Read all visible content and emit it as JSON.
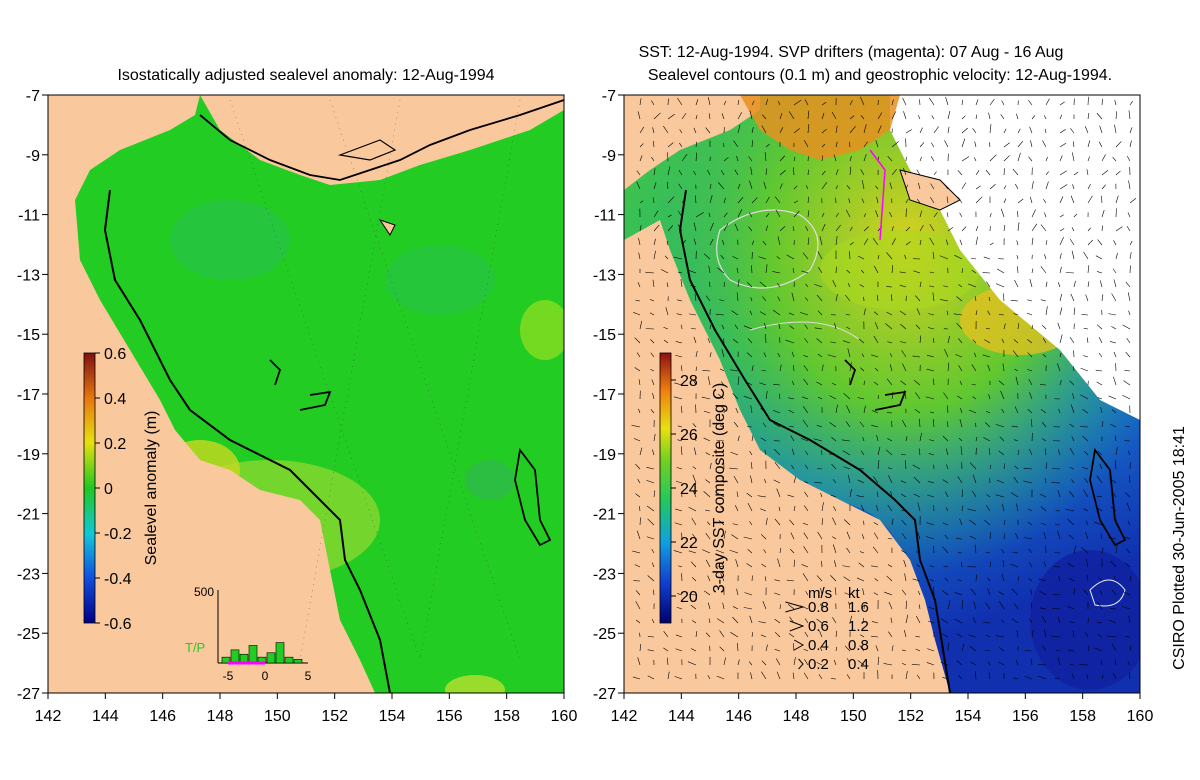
{
  "chart_data": [
    {
      "type": "heatmap",
      "title": "Isostatically adjusted sealevel anomaly: 12-Aug-1994",
      "x_ticks": [
        142,
        144,
        146,
        148,
        150,
        152,
        154,
        156,
        158,
        160
      ],
      "y_ticks": [
        -7,
        -9,
        -11,
        -13,
        -15,
        -17,
        -19,
        -21,
        -23,
        -25,
        -27
      ],
      "xlim": [
        142,
        160
      ],
      "ylim": [
        -27,
        -7
      ],
      "colorbar": {
        "label": "Sealevel anomaly (m)",
        "ticks": [
          "0.6",
          "0.4",
          "0.2",
          "0",
          "-0.2",
          "-0.4",
          "-0.6"
        ],
        "range": [
          -0.6,
          0.6
        ]
      },
      "inset_histogram": {
        "label": "T/P",
        "ytick": "500",
        "xticks": [
          "-5",
          "0",
          "5"
        ],
        "values": [
          40,
          90,
          60,
          120,
          40,
          70,
          140,
          40,
          25
        ]
      }
    },
    {
      "type": "heatmap",
      "title_line1": "SST: 12-Aug-1994. SVP drifters (magenta): 07 Aug - 16 Aug",
      "title_line2": "Sealevel contours (0.1 m) and geostrophic velocity: 12-Aug-1994.",
      "x_ticks": [
        142,
        144,
        146,
        148,
        150,
        152,
        154,
        156,
        158,
        160
      ],
      "y_ticks": [
        -7,
        -9,
        -11,
        -13,
        -15,
        -17,
        -19,
        -21,
        -23,
        -25,
        -27
      ],
      "xlim": [
        142,
        160
      ],
      "ylim": [
        -27,
        -7
      ],
      "colorbar": {
        "label": "3-day SST composite (deg C)",
        "ticks": [
          "28",
          "26",
          "24",
          "22",
          "20"
        ],
        "range": [
          19,
          29
        ]
      },
      "velocity_legend": {
        "header_ms": "m/s",
        "header_kt": "kt",
        "rows": [
          [
            "0.8",
            "1.6"
          ],
          [
            "0.6",
            "1.2"
          ],
          [
            "0.4",
            "0.8"
          ],
          [
            "0.2",
            "0.4"
          ]
        ]
      }
    }
  ],
  "footer": {
    "credit": "CSIRO Plotted 30-Jun-2005 18:41"
  },
  "colors": {
    "land": "#f9c89d",
    "ocean_anomaly": "#22cc22",
    "sst_warm": "#e8c020",
    "sst_cool": "#1a3fc0"
  }
}
